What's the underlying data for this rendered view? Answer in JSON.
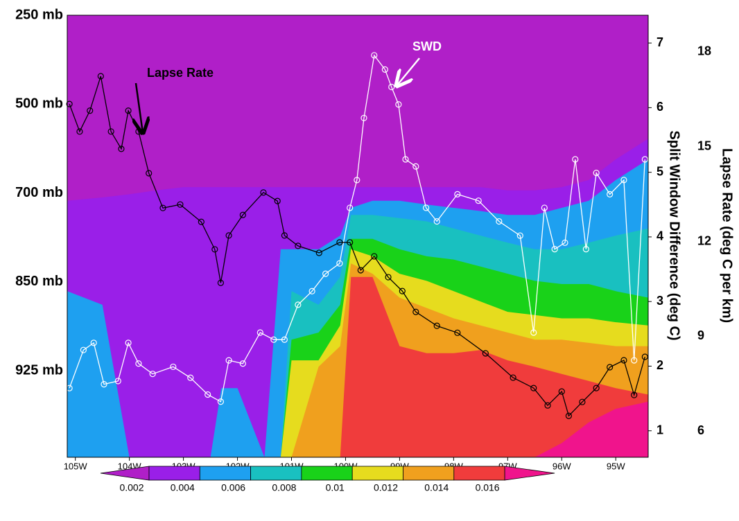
{
  "chart_data": {
    "type": "cross-section",
    "y_categories": [
      "250 mb",
      "500 mb",
      "700 mb",
      "850 mb",
      "925 mb"
    ],
    "xlim": [
      -105.15,
      -94.4
    ],
    "xticks": [
      {
        "value": -105,
        "label": "105W"
      },
      {
        "value": -104,
        "label": "104W"
      },
      {
        "value": -103,
        "label": "103W"
      },
      {
        "value": -102,
        "label": "102W"
      },
      {
        "value": -101,
        "label": "101W"
      },
      {
        "value": -100,
        "label": "100W"
      },
      {
        "value": -99,
        "label": "99W"
      },
      {
        "value": -98,
        "label": "98W"
      },
      {
        "value": -97,
        "label": "97W"
      },
      {
        "value": -96,
        "label": "96W"
      },
      {
        "value": -95,
        "label": "95W"
      }
    ],
    "y2_label": "Split Window Difference (deg C)",
    "y2lim": [
      0.59,
      7.43
    ],
    "y2ticks": [
      1,
      2,
      3,
      4,
      5,
      6,
      7
    ],
    "y3_label": "Lapse Rate (deg C per km)",
    "y3lim": [
      5.17,
      19.16
    ],
    "y3ticks": [
      6,
      9,
      12,
      15,
      18
    ],
    "annotations": [
      {
        "text": "Lapse Rate",
        "color": "#000000"
      },
      {
        "text": "SWD",
        "color": "#ffffff"
      }
    ],
    "contour": {
      "below_color": "#b01fc8",
      "levels": [
        0.002,
        0.004,
        0.006,
        0.008,
        0.01,
        0.012,
        0.014,
        0.016
      ],
      "colors": [
        "#9a1fe8",
        "#1ea0f0",
        "#19c0c0",
        "#19d219",
        "#e6dc1e",
        "#f0a01e",
        "#f03c3c",
        "#f0148c"
      ],
      "x": [
        -105.15,
        -104.5,
        -104,
        -103.5,
        -103,
        -102.5,
        -102.3,
        -102,
        -101.5,
        -101.2,
        -101,
        -100.5,
        -100.1,
        -99.9,
        -99.5,
        -99,
        -98.5,
        -98,
        -97.5,
        -97,
        -96.5,
        -96,
        -95.5,
        -95,
        -94.4
      ],
      "tops": [
        [
          4.56,
          4.61,
          4.66,
          4.72,
          4.77,
          4.77,
          4.77,
          4.77,
          4.77,
          4.77,
          4.77,
          4.77,
          4.77,
          4.77,
          4.77,
          4.77,
          4.77,
          4.77,
          4.77,
          4.72,
          4.72,
          4.77,
          4.88,
          5.2,
          5.52
        ],
        [
          3.16,
          2.95,
          0.59,
          0.59,
          0.59,
          0.59,
          1.66,
          1.66,
          0.59,
          3.81,
          3.81,
          3.81,
          4.02,
          4.45,
          4.56,
          4.56,
          4.5,
          4.45,
          4.4,
          4.34,
          4.34,
          4.45,
          4.56,
          4.88,
          5.2
        ],
        [
          0.59,
          0.59,
          0.59,
          0.59,
          0.59,
          0.59,
          0.59,
          0.59,
          0.59,
          0.59,
          3.16,
          2.95,
          3.38,
          4.34,
          4.34,
          4.29,
          4.24,
          4.13,
          4.02,
          3.91,
          3.81,
          3.81,
          3.91,
          4.02,
          4.13
        ],
        [
          0.59,
          0.59,
          0.59,
          0.59,
          0.59,
          0.59,
          0.59,
          0.59,
          0.59,
          0.59,
          2.41,
          2.52,
          2.95,
          3.97,
          3.97,
          3.81,
          3.7,
          3.65,
          3.54,
          3.43,
          3.32,
          3.27,
          3.27,
          3.16,
          3.06
        ],
        [
          0.59,
          0.59,
          0.59,
          0.59,
          0.59,
          0.59,
          0.59,
          0.59,
          0.59,
          0.59,
          2.09,
          2.09,
          2.63,
          3.81,
          3.7,
          3.43,
          3.32,
          3.16,
          3.0,
          2.84,
          2.79,
          2.74,
          2.74,
          2.68,
          2.63
        ],
        [
          0.59,
          0.59,
          0.59,
          0.59,
          0.59,
          0.59,
          0.59,
          0.59,
          0.59,
          0.59,
          0.59,
          1.99,
          2.31,
          3.59,
          3.43,
          3.06,
          2.9,
          2.74,
          2.63,
          2.52,
          2.41,
          2.41,
          2.36,
          2.31,
          2.31
        ],
        [
          0.59,
          0.59,
          0.59,
          0.59,
          0.59,
          0.59,
          0.59,
          0.59,
          0.59,
          0.59,
          0.59,
          0.59,
          0.59,
          3.38,
          3.38,
          2.31,
          2.2,
          2.2,
          2.25,
          2.09,
          1.99,
          1.88,
          1.77,
          1.66,
          1.56
        ],
        [
          0.59,
          0.59,
          0.59,
          0.59,
          0.59,
          0.59,
          0.59,
          0.59,
          0.59,
          0.59,
          0.59,
          0.59,
          0.59,
          0.59,
          0.59,
          0.59,
          0.59,
          0.59,
          0.59,
          0.59,
          0.59,
          0.81,
          1.13,
          1.34,
          1.45
        ]
      ]
    },
    "series": [
      {
        "name": "SWD",
        "color": "#ffffff",
        "axis": "y2",
        "x": [
          -105.11,
          -104.85,
          -104.66,
          -104.47,
          -104.21,
          -104.02,
          -103.83,
          -103.57,
          -103.19,
          -102.87,
          -102.55,
          -102.31,
          -102.16,
          -101.9,
          -101.58,
          -101.33,
          -101.13,
          -100.88,
          -100.62,
          -100.37,
          -100.11,
          -99.92,
          -99.79,
          -99.66,
          -99.47,
          -99.27,
          -99.15,
          -99.02,
          -98.89,
          -98.7,
          -98.51,
          -98.31,
          -97.93,
          -97.54,
          -97.16,
          -96.77,
          -96.52,
          -96.32,
          -96.13,
          -95.94,
          -95.75,
          -95.55,
          -95.36,
          -95.11,
          -94.85,
          -94.66,
          -94.46
        ],
        "values": [
          1.66,
          2.25,
          2.36,
          1.72,
          1.77,
          2.36,
          2.04,
          1.88,
          1.99,
          1.82,
          1.56,
          1.45,
          2.09,
          2.04,
          2.52,
          2.41,
          2.41,
          2.95,
          3.16,
          3.43,
          3.59,
          4.45,
          4.88,
          5.84,
          6.81,
          6.59,
          6.32,
          6.05,
          5.2,
          5.09,
          4.45,
          4.24,
          4.66,
          4.56,
          4.24,
          4.02,
          2.52,
          4.45,
          3.81,
          3.91,
          5.2,
          3.81,
          4.99,
          4.66,
          4.88,
          2.09,
          5.2
        ]
      },
      {
        "name": "Lapse Rate",
        "color": "#000000",
        "axis": "y3",
        "x": [
          -105.11,
          -104.92,
          -104.73,
          -104.53,
          -104.34,
          -104.15,
          -104.02,
          -103.83,
          -103.64,
          -103.38,
          -103.06,
          -102.67,
          -102.42,
          -102.31,
          -102.16,
          -101.9,
          -101.52,
          -101.26,
          -101.13,
          -100.88,
          -100.49,
          -100.11,
          -99.92,
          -99.72,
          -99.47,
          -99.21,
          -98.95,
          -98.7,
          -98.31,
          -97.93,
          -97.41,
          -96.9,
          -96.52,
          -96.26,
          -96,
          -95.87,
          -95.62,
          -95.36,
          -95.11,
          -94.85,
          -94.66,
          -94.46
        ],
        "values": [
          16.35,
          15.48,
          16.14,
          17.23,
          15.48,
          14.93,
          16.14,
          15.48,
          14.16,
          13.06,
          13.17,
          12.62,
          11.75,
          10.69,
          12.19,
          12.84,
          13.55,
          13.28,
          12.19,
          11.86,
          11.64,
          11.97,
          11.97,
          11.09,
          11.53,
          10.87,
          10.43,
          9.77,
          9.33,
          9.11,
          8.46,
          7.69,
          7.36,
          6.81,
          7.25,
          6.48,
          6.92,
          7.36,
          8.02,
          8.24,
          7.14,
          8.35
        ]
      }
    ]
  }
}
